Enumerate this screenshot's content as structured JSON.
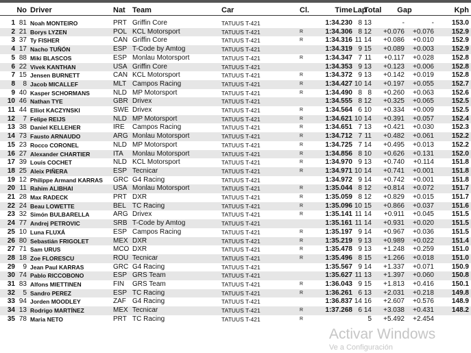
{
  "headers": {
    "no": "No",
    "driver": "Driver",
    "nat": "Nat",
    "team": "Team",
    "car": "Car",
    "cl": "Cl.",
    "time": "Time",
    "lap": "Lap",
    "total": "Total",
    "gap": "Gap",
    "kph": "Kph"
  },
  "rows": [
    [
      "1",
      "81",
      "Noah MONTEIRO",
      "PRT",
      "Griffin Core",
      "TATUUS T-421",
      "",
      "1:34.230",
      "8",
      "13",
      "-",
      "-",
      "153.0"
    ],
    [
      "2",
      "21",
      "Borys LYZEN",
      "POL",
      "KCL Motorsport",
      "TATUUS T-421",
      "R",
      "1:34.306",
      "8",
      "12",
      "+0.076",
      "+0.076",
      "152.9"
    ],
    [
      "3",
      "37",
      "Ty FISHER",
      "CAN",
      "Griffin Core",
      "TATUUS T-421",
      "R",
      "1:34.316",
      "11",
      "14",
      "+0.086",
      "+0.010",
      "152.9"
    ],
    [
      "4",
      "17",
      "Nacho TUÑÓN",
      "ESP",
      "T-Code by Amtog",
      "TATUUS T-421",
      "",
      "1:34.319",
      "9",
      "15",
      "+0.089",
      "+0.003",
      "152.9"
    ],
    [
      "5",
      "88",
      "Miki BLASCOS",
      "ESP",
      "Monlau Motorsport",
      "TATUUS T-421",
      "R",
      "1:34.347",
      "7",
      "11",
      "+0.117",
      "+0.028",
      "152.8"
    ],
    [
      "6",
      "22",
      "Vivek KANTHAN",
      "USA",
      "Griffin Core",
      "TATUUS T-421",
      "",
      "1:34.353",
      "9",
      "13",
      "+0.123",
      "+0.006",
      "152.8"
    ],
    [
      "7",
      "15",
      "Jensen BURNETT",
      "CAN",
      "KCL Motorsport",
      "TATUUS T-421",
      "R",
      "1:34.372",
      "9",
      "13",
      "+0.142",
      "+0.019",
      "152.8"
    ],
    [
      "8",
      "8",
      "Jacob MICALLEF",
      "MLT",
      "Campos Racing",
      "TATUUS T-421",
      "R",
      "1:34.427",
      "10",
      "14",
      "+0.197",
      "+0.055",
      "152.7"
    ],
    [
      "9",
      "40",
      "Kasper SCHORMANS",
      "NLD",
      "MP Motorsport",
      "TATUUS T-421",
      "R",
      "1:34.490",
      "8",
      "8",
      "+0.260",
      "+0.063",
      "152.6"
    ],
    [
      "10",
      "46",
      "Nathan TYE",
      "GBR",
      "Drivex",
      "TATUUS T-421",
      "",
      "1:34.555",
      "8",
      "12",
      "+0.325",
      "+0.065",
      "152.5"
    ],
    [
      "11",
      "44",
      "Elliot KACZYNSKI",
      "SWE",
      "Drivex",
      "TATUUS T-421",
      "R",
      "1:34.564",
      "6",
      "10",
      "+0.334",
      "+0.009",
      "152.5"
    ],
    [
      "12",
      "7",
      "Felipe REIJS",
      "NLD",
      "MP Motorsport",
      "TATUUS T-421",
      "R",
      "1:34.621",
      "10",
      "14",
      "+0.391",
      "+0.057",
      "152.4"
    ],
    [
      "13",
      "38",
      "Daniel KELLEHER",
      "IRE",
      "Campos Racing",
      "TATUUS T-421",
      "R",
      "1:34.651",
      "7",
      "13",
      "+0.421",
      "+0.030",
      "152.3"
    ],
    [
      "14",
      "73",
      "Fausto ARNAUDO",
      "ARG",
      "Monlau Motorsport",
      "TATUUS T-421",
      "R",
      "1:34.712",
      "7",
      "11",
      "+0.482",
      "+0.061",
      "152.2"
    ],
    [
      "15",
      "23",
      "Rocco CORONEL",
      "NLD",
      "MP Motorsport",
      "TATUUS T-421",
      "R",
      "1:34.725",
      "7",
      "14",
      "+0.495",
      "+0.013",
      "152.2"
    ],
    [
      "16",
      "27",
      "Alexander CHARTIER",
      "ITA",
      "Monlau Motorsport",
      "TATUUS T-421",
      "R",
      "1:34.856",
      "8",
      "10",
      "+0.626",
      "+0.131",
      "152.0"
    ],
    [
      "17",
      "39",
      "Louis COCHET",
      "NLD",
      "KCL Motorsport",
      "TATUUS T-421",
      "R",
      "1:34.970",
      "9",
      "13",
      "+0.740",
      "+0.114",
      "151.8"
    ],
    [
      "18",
      "25",
      "Aleix PIÑERA",
      "ESP",
      "Tecnicar",
      "TATUUS T-421",
      "R",
      "1:34.971",
      "10",
      "14",
      "+0.741",
      "+0.001",
      "151.8"
    ],
    [
      "19",
      "12",
      "Philippe Armand KARRAS",
      "GRC",
      "G4 Racing",
      "TATUUS T-421",
      "",
      "1:34.972",
      "9",
      "14",
      "+0.742",
      "+0.001",
      "151.8"
    ],
    [
      "20",
      "11",
      "Rahim ALIBHAI",
      "USA",
      "Monlau Motorsport",
      "TATUUS T-421",
      "R",
      "1:35.044",
      "8",
      "12",
      "+0.814",
      "+0.072",
      "151.7"
    ],
    [
      "21",
      "28",
      "Max RADECK",
      "PRT",
      "DXR",
      "TATUUS T-421",
      "R",
      "1:35.059",
      "8",
      "12",
      "+0.829",
      "+0.015",
      "151.7"
    ],
    [
      "22",
      "24",
      "Beau LOWETTE",
      "BEL",
      "TC Racing",
      "TATUUS T-421",
      "R",
      "1:35.096",
      "10",
      "15",
      "+0.866",
      "+0.037",
      "151.6"
    ],
    [
      "23",
      "32",
      "Simón BULBARELLA",
      "ARG",
      "Drivex",
      "TATUUS T-421",
      "R",
      "1:35.141",
      "11",
      "14",
      "+0.911",
      "+0.045",
      "151.5"
    ],
    [
      "24",
      "77",
      "Andrej PETROVIC",
      "SRB",
      "T-Code by Amtog",
      "TATUUS T-421",
      "",
      "1:35.161",
      "11",
      "14",
      "+0.931",
      "+0.020",
      "151.5"
    ],
    [
      "25",
      "10",
      "Luna FLUXÁ",
      "ESP",
      "Campos Racing",
      "TATUUS T-421",
      "R",
      "1:35.197",
      "9",
      "14",
      "+0.967",
      "+0.036",
      "151.5"
    ],
    [
      "26",
      "80",
      "Sebastián FRIGOLET",
      "MEX",
      "DXR",
      "TATUUS T-421",
      "R",
      "1:35.219",
      "9",
      "13",
      "+0.989",
      "+0.022",
      "151.4"
    ],
    [
      "27",
      "71",
      "Sam URUS",
      "MCO",
      "DXR",
      "TATUUS T-421",
      "R",
      "1:35.478",
      "9",
      "13",
      "+1.248",
      "+0.259",
      "151.0"
    ],
    [
      "28",
      "18",
      "Zoe FLORESCU",
      "ROU",
      "Tecnicar",
      "TATUUS T-421",
      "R",
      "1:35.496",
      "8",
      "15",
      "+1.266",
      "+0.018",
      "151.0"
    ],
    [
      "29",
      "9",
      "Jean Paul KARRAS",
      "GRC",
      "G4 Racing",
      "TATUUS T-421",
      "",
      "1:35.567",
      "9",
      "14",
      "+1.337",
      "+0.071",
      "150.9"
    ],
    [
      "30",
      "74",
      "Pablo RICCOBONO",
      "ESP",
      "GRS Team",
      "TATUUS T-421",
      "",
      "1:35.627",
      "11",
      "13",
      "+1.397",
      "+0.060",
      "150.8"
    ],
    [
      "31",
      "83",
      "Alfons MIETTINEN",
      "FIN",
      "GRS Team",
      "TATUUS T-421",
      "R",
      "1:36.043",
      "9",
      "15",
      "+1.813",
      "+0.416",
      "150.1"
    ],
    [
      "32",
      "5",
      "Sandro PEREZ",
      "ESP",
      "TC Racing",
      "TATUUS T-421",
      "R",
      "1:36.261",
      "6",
      "13",
      "+2.031",
      "+0.218",
      "149.8"
    ],
    [
      "33",
      "94",
      "Jorden MOODLEY",
      "ZAF",
      "G4 Racing",
      "TATUUS T-421",
      "",
      "1:36.837",
      "14",
      "16",
      "+2.607",
      "+0.576",
      "148.9"
    ],
    [
      "34",
      "13",
      "Rodrigo MARTÍNEZ",
      "MEX",
      "Tecnicar",
      "TATUUS T-421",
      "R",
      "1:37.268",
      "6",
      "14",
      "+3.038",
      "+0.431",
      "148.2"
    ],
    [
      "35",
      "78",
      "Maria NETO",
      "PRT",
      "TC Racing",
      "TATUUS T-421",
      "R",
      "",
      "",
      "5",
      "+5.492",
      "+2.454",
      ""
    ]
  ],
  "watermark": {
    "line1": "Activar Windows",
    "line2": "Ve a Configuración"
  }
}
